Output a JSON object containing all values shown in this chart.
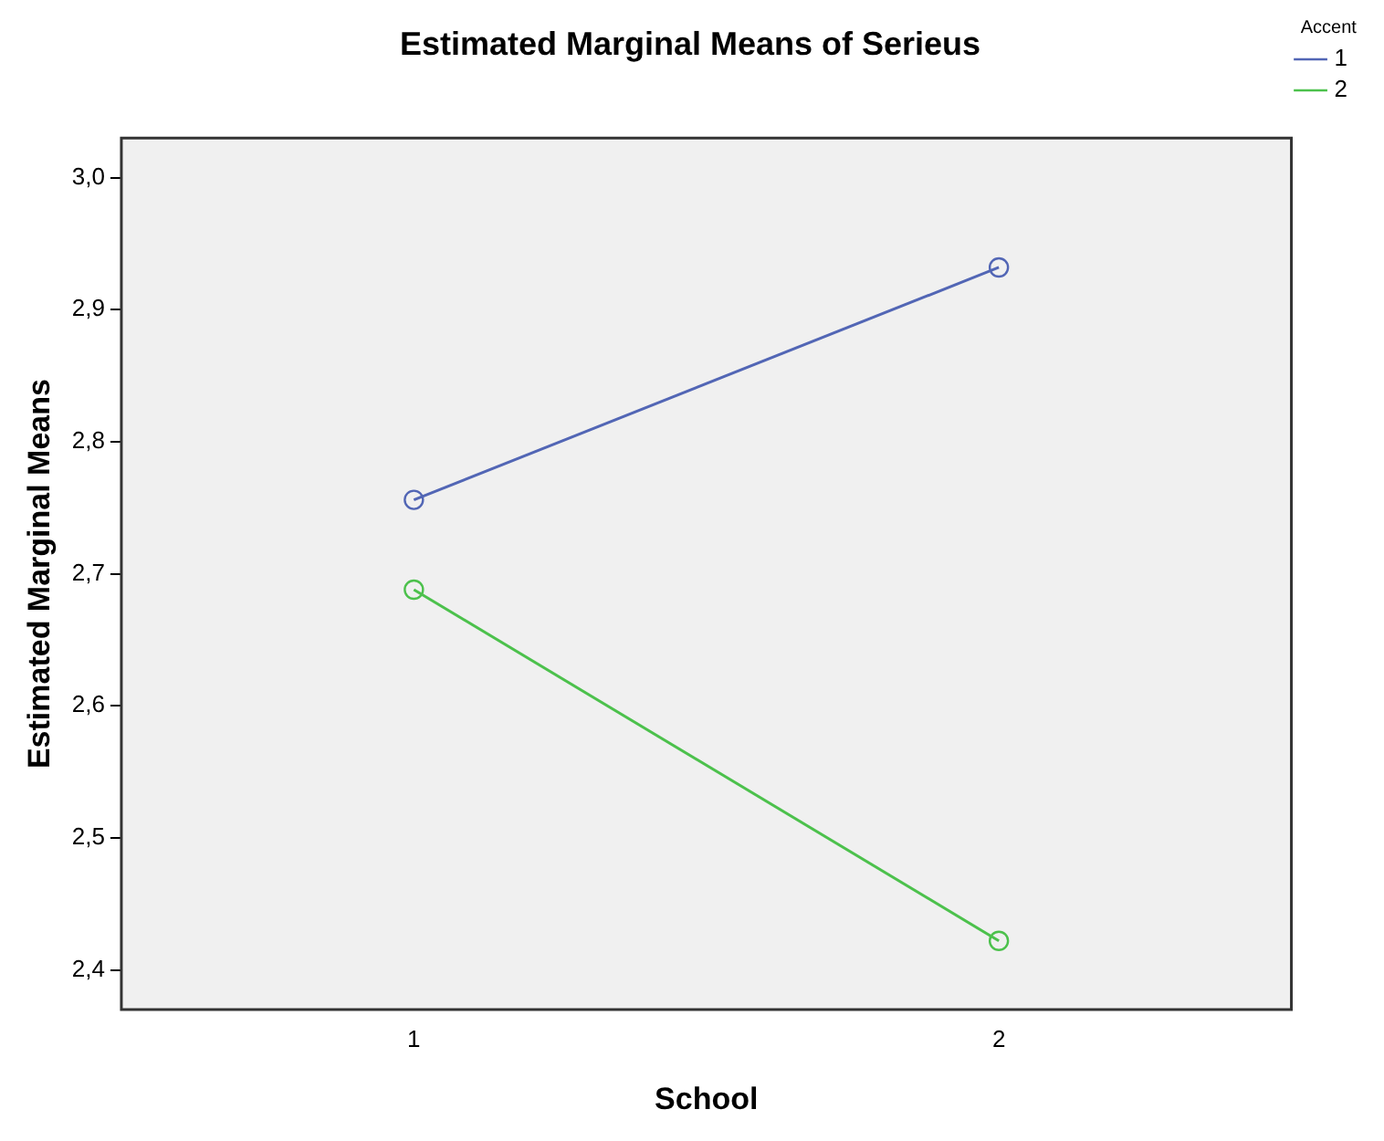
{
  "chart_data": {
    "type": "line",
    "title": "Estimated Marginal Means of Serieus",
    "xlabel": "School",
    "ylabel": "Estimated Marginal Means",
    "legend_title": "Accent",
    "categories": [
      "1",
      "2"
    ],
    "series": [
      {
        "name": "1",
        "color": "#5266b5",
        "values": [
          2.756,
          2.932
        ]
      },
      {
        "name": "2",
        "color": "#4cc14c",
        "values": [
          2.688,
          2.422
        ]
      }
    ],
    "ylim": [
      2.37,
      3.03
    ],
    "yticks": [
      {
        "value": 2.4,
        "label": "2,4"
      },
      {
        "value": 2.5,
        "label": "2,5"
      },
      {
        "value": 2.6,
        "label": "2,6"
      },
      {
        "value": 2.7,
        "label": "2,7"
      },
      {
        "value": 2.8,
        "label": "2,8"
      },
      {
        "value": 2.9,
        "label": "2,9"
      },
      {
        "value": 3.0,
        "label": "3,0"
      }
    ],
    "grid": false,
    "legend": "right",
    "marker": "circle",
    "line_style": "solid"
  }
}
